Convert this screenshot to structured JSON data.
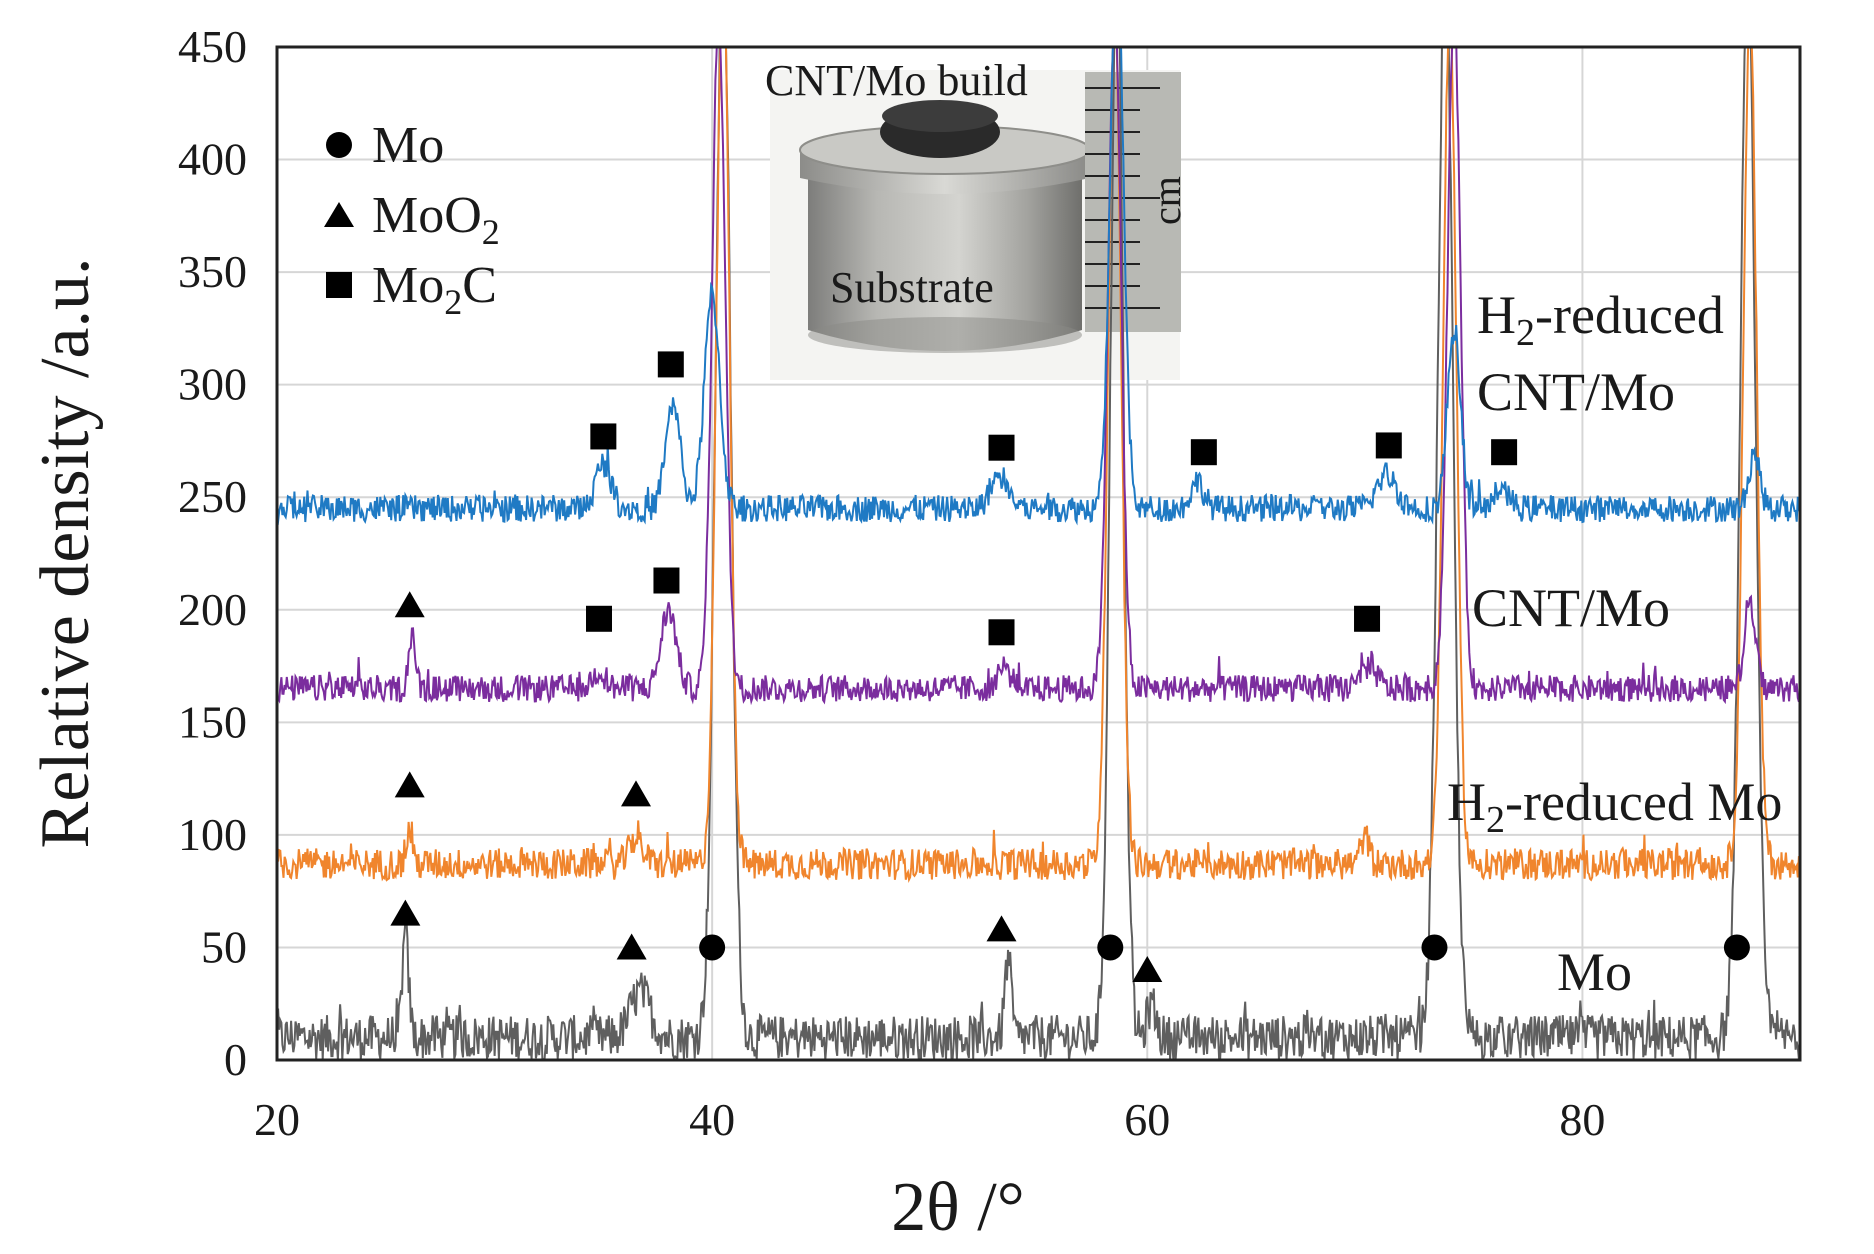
{
  "chart_data": {
    "type": "line",
    "title": "",
    "xlabel": "2θ /°",
    "ylabel": "Relative density /a.u.",
    "xlim": [
      20,
      90
    ],
    "ylim": [
      0,
      450
    ],
    "x_ticks": [
      20,
      40,
      60,
      80
    ],
    "y_ticks": [
      0,
      50,
      100,
      150,
      200,
      250,
      300,
      350,
      400,
      450
    ],
    "grid": true,
    "series": [
      {
        "name": "Mo",
        "color": "#5f5f5f",
        "baseline": 10,
        "noise": 10,
        "peaks": [
          {
            "x": 25.9,
            "h": 45,
            "w": 0.15
          },
          {
            "x": 36.7,
            "h": 20,
            "w": 0.45
          },
          {
            "x": 40.5,
            "h": 480,
            "w": 0.35
          },
          {
            "x": 53.6,
            "h": 35,
            "w": 0.15
          },
          {
            "x": 58.6,
            "h": 480,
            "w": 0.3
          },
          {
            "x": 60.2,
            "h": 15,
            "w": 0.2
          },
          {
            "x": 73.7,
            "h": 480,
            "w": 0.35
          },
          {
            "x": 87.6,
            "h": 470,
            "w": 0.35
          }
        ]
      },
      {
        "name": "H2-reduced Mo",
        "color": "#f0852d",
        "baseline": 87,
        "noise": 7,
        "peaks": [
          {
            "x": 26.1,
            "h": 15,
            "w": 0.15
          },
          {
            "x": 36.5,
            "h": 12,
            "w": 0.3
          },
          {
            "x": 40.5,
            "h": 400,
            "w": 0.3
          },
          {
            "x": 58.5,
            "h": 380,
            "w": 0.3
          },
          {
            "x": 70.0,
            "h": 12,
            "w": 0.2
          },
          {
            "x": 73.9,
            "h": 380,
            "w": 0.3
          },
          {
            "x": 87.7,
            "h": 380,
            "w": 0.3
          }
        ]
      },
      {
        "name": "CNT/Mo",
        "color": "#7b2d9e",
        "baseline": 165,
        "noise": 6,
        "peaks": [
          {
            "x": 26.2,
            "h": 25,
            "w": 0.15
          },
          {
            "x": 34.8,
            "h": 8,
            "w": 0.3
          },
          {
            "x": 38.0,
            "h": 35,
            "w": 0.35
          },
          {
            "x": 40.3,
            "h": 300,
            "w": 0.3
          },
          {
            "x": 53.4,
            "h": 10,
            "w": 0.3
          },
          {
            "x": 58.5,
            "h": 300,
            "w": 0.3
          },
          {
            "x": 70.2,
            "h": 10,
            "w": 0.35
          },
          {
            "x": 74.1,
            "h": 300,
            "w": 0.3
          },
          {
            "x": 87.7,
            "h": 40,
            "w": 0.25
          }
        ]
      },
      {
        "name": "H2-reduced CNT/Mo",
        "color": "#1f7ac4",
        "baseline": 245,
        "noise": 6,
        "peaks": [
          {
            "x": 35.0,
            "h": 20,
            "w": 0.35
          },
          {
            "x": 38.2,
            "h": 45,
            "w": 0.35
          },
          {
            "x": 40.0,
            "h": 95,
            "w": 0.35
          },
          {
            "x": 53.2,
            "h": 15,
            "w": 0.4
          },
          {
            "x": 58.6,
            "h": 250,
            "w": 0.3
          },
          {
            "x": 62.3,
            "h": 12,
            "w": 0.3
          },
          {
            "x": 71.0,
            "h": 15,
            "w": 0.45
          },
          {
            "x": 74.1,
            "h": 80,
            "w": 0.3
          },
          {
            "x": 76.3,
            "h": 10,
            "w": 0.3
          },
          {
            "x": 87.9,
            "h": 25,
            "w": 0.25
          }
        ]
      }
    ],
    "markers": [
      {
        "shape": "circle",
        "x": 40.0,
        "y": 50
      },
      {
        "shape": "circle",
        "x": 58.3,
        "y": 50
      },
      {
        "shape": "circle",
        "x": 73.2,
        "y": 50
      },
      {
        "shape": "circle",
        "x": 87.1,
        "y": 50
      },
      {
        "shape": "triangle",
        "x": 25.9,
        "y": 65
      },
      {
        "shape": "triangle",
        "x": 36.3,
        "y": 50
      },
      {
        "shape": "triangle",
        "x": 53.3,
        "y": 58
      },
      {
        "shape": "triangle",
        "x": 60.0,
        "y": 40
      },
      {
        "shape": "triangle",
        "x": 26.1,
        "y": 122
      },
      {
        "shape": "triangle",
        "x": 36.5,
        "y": 118
      },
      {
        "shape": "triangle",
        "x": 26.1,
        "y": 202
      },
      {
        "shape": "square",
        "x": 34.8,
        "y": 196
      },
      {
        "shape": "square",
        "x": 37.9,
        "y": 213
      },
      {
        "shape": "square",
        "x": 53.3,
        "y": 190
      },
      {
        "shape": "square",
        "x": 70.1,
        "y": 196
      },
      {
        "shape": "square",
        "x": 35.0,
        "y": 277
      },
      {
        "shape": "square",
        "x": 38.1,
        "y": 309
      },
      {
        "shape": "square",
        "x": 53.3,
        "y": 272
      },
      {
        "shape": "square",
        "x": 62.6,
        "y": 270
      },
      {
        "shape": "square",
        "x": 71.1,
        "y": 273
      },
      {
        "shape": "square",
        "x": 76.4,
        "y": 270
      }
    ],
    "legend": {
      "placement": "top-left",
      "entries": [
        {
          "shape": "circle",
          "label": "Mo",
          "sub": ""
        },
        {
          "shape": "triangle",
          "label": "MoO",
          "sub": "2"
        },
        {
          "shape": "square",
          "label": "Mo",
          "sub": "2",
          "tail": "C"
        }
      ]
    }
  },
  "labels": {
    "h2_cnt_line1_main": "H",
    "h2_cnt_line1_sub": "2",
    "h2_cnt_line1_rest": "-reduced",
    "h2_cnt_line2": "CNT/Mo",
    "cnt_mo": "CNT/Mo",
    "h2_mo_main": "H",
    "h2_mo_sub": "2",
    "h2_mo_rest": "-reduced Mo",
    "mo": "Mo"
  },
  "inset": {
    "title": "CNT/Mo build",
    "substrate": "Substrate",
    "unit": "cm"
  }
}
